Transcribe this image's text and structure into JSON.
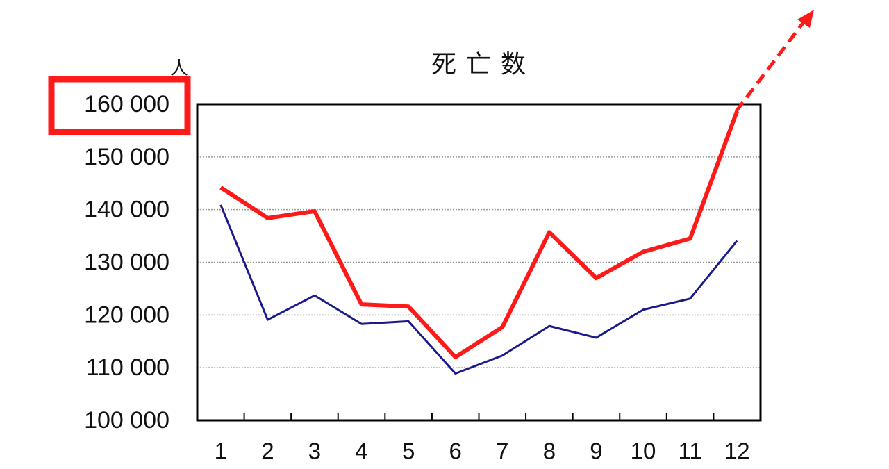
{
  "chart_data": {
    "type": "line",
    "title": "死 亡 数",
    "y_unit": "人",
    "categories": [
      "1",
      "2",
      "3",
      "4",
      "5",
      "6",
      "7",
      "8",
      "9",
      "10",
      "11",
      "12"
    ],
    "series": [
      {
        "color": "#ff1a1a",
        "values": [
          144200,
          138400,
          139700,
          122000,
          121600,
          112000,
          117700,
          135700,
          127000,
          132000,
          134500,
          158700
        ]
      },
      {
        "color": "#1a1a8c",
        "values": [
          140900,
          119100,
          123700,
          118300,
          118800,
          108900,
          112300,
          117900,
          115700,
          121000,
          123100,
          134100
        ]
      }
    ],
    "ylim": [
      100000,
      160000
    ],
    "yticks": [
      {
        "value": 100000,
        "label": "100 000"
      },
      {
        "value": 110000,
        "label": "110 000"
      },
      {
        "value": 120000,
        "label": "120 000"
      },
      {
        "value": 130000,
        "label": "130 000"
      },
      {
        "value": 140000,
        "label": "140 000"
      },
      {
        "value": 150000,
        "label": "150 000"
      },
      {
        "value": 160000,
        "label": "160 000"
      }
    ],
    "grid": true
  }
}
